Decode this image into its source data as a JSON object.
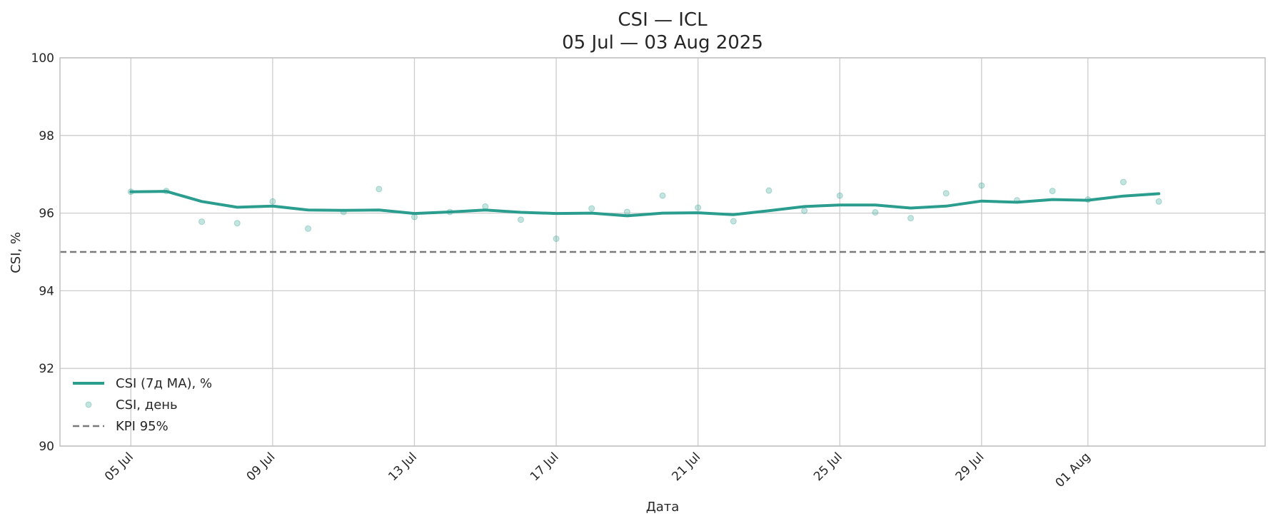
{
  "chart_data": {
    "type": "line",
    "title": "CSI — ICL",
    "subtitle": "05 Jul — 03 Aug 2025",
    "xlabel": "Дата",
    "ylabel": "CSI, %",
    "ylim": [
      90,
      100
    ],
    "yticks": [
      90,
      92,
      94,
      96,
      98,
      100
    ],
    "xlim": [
      "2025-07-03",
      "2025-08-06"
    ],
    "xticks": [
      {
        "date": "2025-07-05",
        "label": "05 Jul"
      },
      {
        "date": "2025-07-09",
        "label": "09 Jul"
      },
      {
        "date": "2025-07-13",
        "label": "13 Jul"
      },
      {
        "date": "2025-07-17",
        "label": "17 Jul"
      },
      {
        "date": "2025-07-21",
        "label": "21 Jul"
      },
      {
        "date": "2025-07-25",
        "label": "25 Jul"
      },
      {
        "date": "2025-07-29",
        "label": "29 Jul"
      },
      {
        "date": "2025-08-01",
        "label": "01 Aug"
      }
    ],
    "grid": true,
    "legend_position": "bottom-left",
    "x": [
      "2025-07-05",
      "2025-07-06",
      "2025-07-07",
      "2025-07-08",
      "2025-07-09",
      "2025-07-10",
      "2025-07-11",
      "2025-07-12",
      "2025-07-13",
      "2025-07-14",
      "2025-07-15",
      "2025-07-16",
      "2025-07-17",
      "2025-07-18",
      "2025-07-19",
      "2025-07-20",
      "2025-07-21",
      "2025-07-22",
      "2025-07-23",
      "2025-07-24",
      "2025-07-25",
      "2025-07-26",
      "2025-07-27",
      "2025-07-28",
      "2025-07-29",
      "2025-07-30",
      "2025-07-31",
      "2025-08-01",
      "2025-08-02",
      "2025-08-03"
    ],
    "series": [
      {
        "name": "CSI (7д MA), %",
        "kind": "line",
        "color": "#2a9d8f",
        "values": [
          96.55,
          96.56,
          96.3,
          96.15,
          96.18,
          96.08,
          96.07,
          96.08,
          95.99,
          96.03,
          96.08,
          96.02,
          95.99,
          96.0,
          95.93,
          96.0,
          96.01,
          95.96,
          96.06,
          96.17,
          96.21,
          96.21,
          96.13,
          96.18,
          96.31,
          96.28,
          96.35,
          96.33,
          96.44,
          96.5
        ]
      },
      {
        "name": "CSI, день",
        "kind": "scatter",
        "color": "#2a9d8f",
        "values": [
          96.55,
          96.57,
          95.78,
          95.74,
          96.3,
          95.6,
          96.03,
          96.62,
          95.9,
          96.03,
          96.17,
          95.83,
          95.34,
          96.12,
          96.03,
          96.45,
          96.14,
          95.79,
          96.58,
          96.06,
          96.45,
          96.02,
          95.87,
          96.51,
          96.71,
          96.33,
          96.57,
          96.35,
          96.8,
          96.3
        ]
      },
      {
        "name": "KPI 95%",
        "kind": "hline",
        "color": "#7a7a7a",
        "value": 95
      }
    ]
  }
}
